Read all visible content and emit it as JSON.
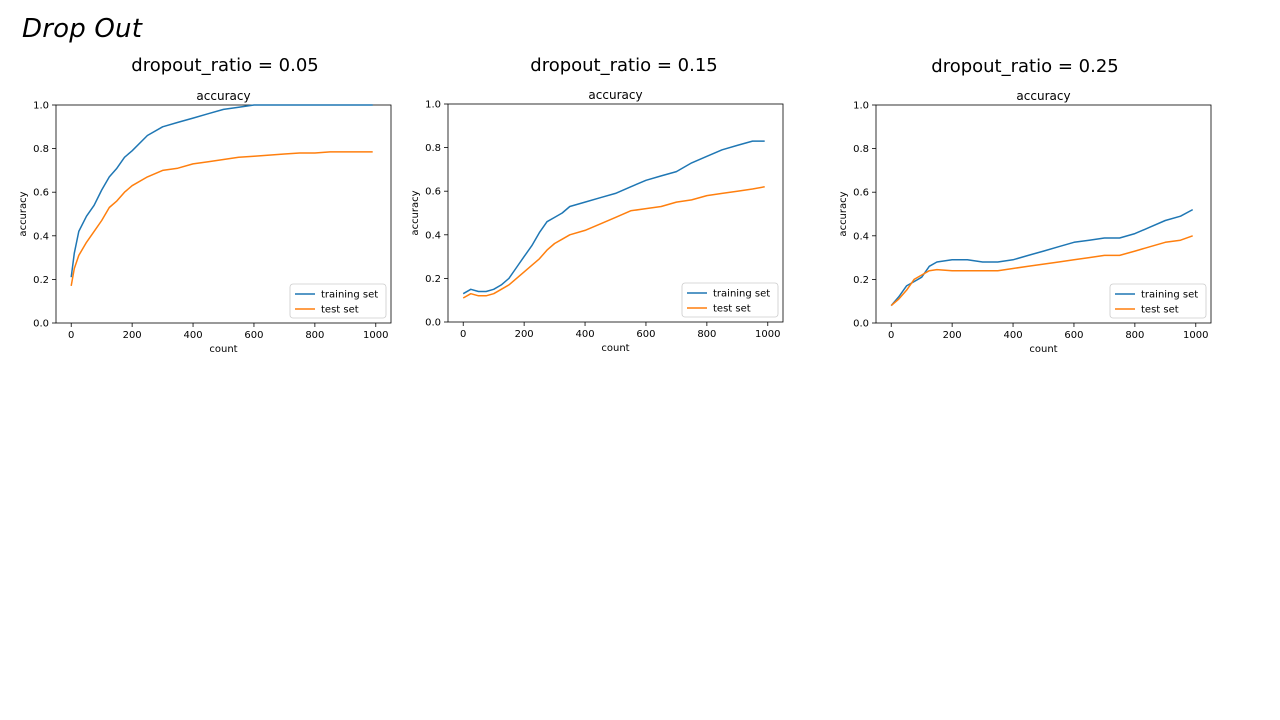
{
  "slide": {
    "title": "Drop Out"
  },
  "colors": {
    "training": "#1f77b4",
    "test": "#ff7f0e"
  },
  "chart_data": [
    {
      "type": "line",
      "heading": "dropout_ratio = 0.05",
      "title": "accuracy",
      "xlabel": "count",
      "ylabel": "accuracy",
      "xlim": [
        -50,
        1050
      ],
      "ylim": [
        0.0,
        1.0
      ],
      "xticks": [
        "0",
        "200",
        "400",
        "600",
        "800",
        "1000"
      ],
      "yticks": [
        "0.0",
        "0.2",
        "0.4",
        "0.6",
        "0.8",
        "1.0"
      ],
      "legend": "lower-right",
      "grid": false,
      "x": [
        0,
        10,
        25,
        50,
        75,
        100,
        125,
        150,
        175,
        200,
        250,
        300,
        350,
        400,
        450,
        500,
        550,
        600,
        650,
        700,
        750,
        800,
        850,
        900,
        950,
        990
      ],
      "series": [
        {
          "name": "training set",
          "values": [
            0.21,
            0.32,
            0.42,
            0.49,
            0.54,
            0.61,
            0.67,
            0.71,
            0.76,
            0.79,
            0.86,
            0.9,
            0.92,
            0.94,
            0.96,
            0.98,
            0.99,
            1.0,
            1.0,
            1.0,
            1.0,
            1.0,
            1.0,
            1.0,
            1.0,
            1.0
          ]
        },
        {
          "name": "test set",
          "values": [
            0.17,
            0.25,
            0.31,
            0.37,
            0.42,
            0.47,
            0.53,
            0.56,
            0.6,
            0.63,
            0.67,
            0.7,
            0.71,
            0.73,
            0.74,
            0.75,
            0.76,
            0.765,
            0.77,
            0.775,
            0.78,
            0.78,
            0.785,
            0.785,
            0.785,
            0.785
          ]
        }
      ]
    },
    {
      "type": "line",
      "heading": "dropout_ratio = 0.15",
      "title": "accuracy",
      "xlabel": "count",
      "ylabel": "accuracy",
      "xlim": [
        -50,
        1050
      ],
      "ylim": [
        0.0,
        1.0
      ],
      "xticks": [
        "0",
        "200",
        "400",
        "600",
        "800",
        "1000"
      ],
      "yticks": [
        "0.0",
        "0.2",
        "0.4",
        "0.6",
        "0.8",
        "1.0"
      ],
      "legend": "lower-right",
      "grid": false,
      "x": [
        0,
        25,
        50,
        75,
        100,
        125,
        150,
        175,
        200,
        225,
        250,
        275,
        300,
        325,
        350,
        400,
        450,
        500,
        550,
        600,
        650,
        700,
        750,
        800,
        850,
        900,
        950,
        990
      ],
      "series": [
        {
          "name": "training set",
          "values": [
            0.13,
            0.15,
            0.14,
            0.14,
            0.15,
            0.17,
            0.2,
            0.25,
            0.3,
            0.35,
            0.41,
            0.46,
            0.48,
            0.5,
            0.53,
            0.55,
            0.57,
            0.59,
            0.62,
            0.65,
            0.67,
            0.69,
            0.73,
            0.76,
            0.79,
            0.81,
            0.83,
            0.83
          ]
        },
        {
          "name": "test set",
          "values": [
            0.11,
            0.13,
            0.12,
            0.12,
            0.13,
            0.15,
            0.17,
            0.2,
            0.23,
            0.26,
            0.29,
            0.33,
            0.36,
            0.38,
            0.4,
            0.42,
            0.45,
            0.48,
            0.51,
            0.52,
            0.53,
            0.55,
            0.56,
            0.58,
            0.59,
            0.6,
            0.61,
            0.62
          ]
        }
      ]
    },
    {
      "type": "line",
      "heading": "dropout_ratio = 0.25",
      "title": "accuracy",
      "xlabel": "count",
      "ylabel": "accuracy",
      "xlim": [
        -50,
        1050
      ],
      "ylim": [
        0.0,
        1.0
      ],
      "xticks": [
        "0",
        "200",
        "400",
        "600",
        "800",
        "1000"
      ],
      "yticks": [
        "0.0",
        "0.2",
        "0.4",
        "0.6",
        "0.8",
        "1.0"
      ],
      "legend": "lower-right",
      "grid": false,
      "x": [
        0,
        25,
        50,
        75,
        100,
        125,
        150,
        200,
        250,
        300,
        350,
        400,
        450,
        500,
        550,
        600,
        650,
        700,
        750,
        800,
        850,
        900,
        950,
        990
      ],
      "series": [
        {
          "name": "training set",
          "values": [
            0.08,
            0.12,
            0.17,
            0.19,
            0.21,
            0.26,
            0.28,
            0.29,
            0.29,
            0.28,
            0.28,
            0.29,
            0.31,
            0.33,
            0.35,
            0.37,
            0.38,
            0.39,
            0.39,
            0.41,
            0.44,
            0.47,
            0.49,
            0.52
          ]
        },
        {
          "name": "test set",
          "values": [
            0.08,
            0.11,
            0.15,
            0.2,
            0.22,
            0.24,
            0.245,
            0.24,
            0.24,
            0.24,
            0.24,
            0.25,
            0.26,
            0.27,
            0.28,
            0.29,
            0.3,
            0.31,
            0.31,
            0.33,
            0.35,
            0.37,
            0.38,
            0.4
          ]
        }
      ]
    }
  ]
}
